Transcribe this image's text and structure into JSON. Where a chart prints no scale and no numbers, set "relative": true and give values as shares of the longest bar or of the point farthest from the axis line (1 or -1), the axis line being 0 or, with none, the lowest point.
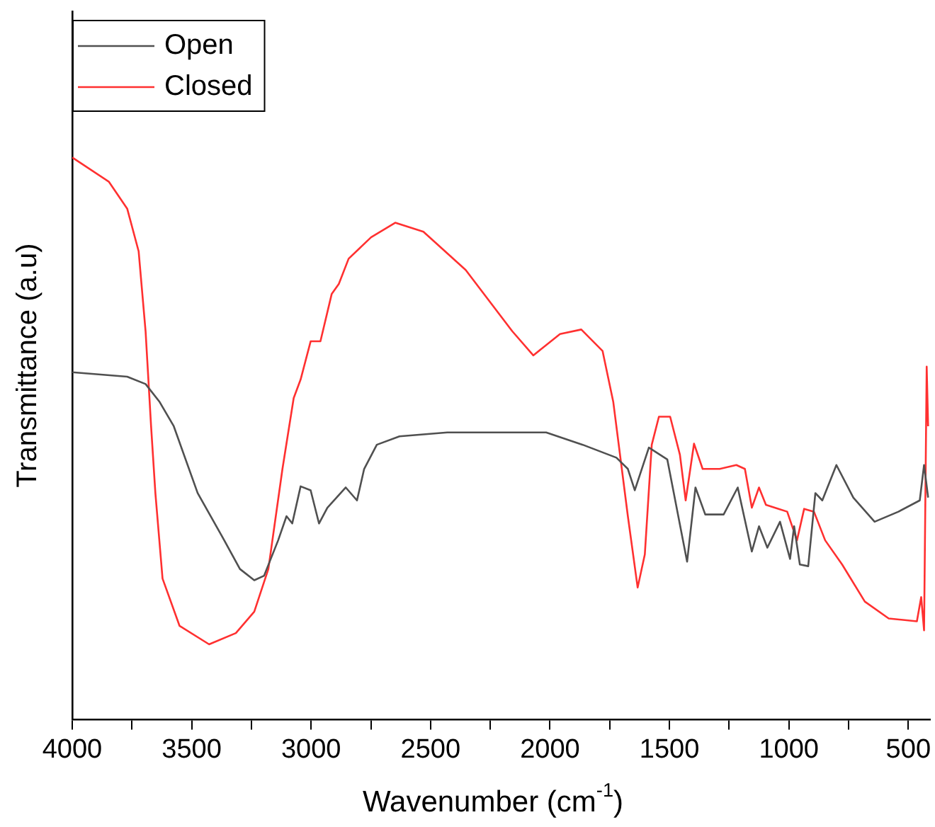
{
  "chart_data": {
    "type": "line",
    "xlabel": "Wavenumber (cm$^{-1}$)",
    "ylabel": "Transmittance (a.u)",
    "relative": true,
    "legend": "top left",
    "grid": false,
    "marker": "none",
    "line_style": "solid",
    "xlim": [
      4000,
      410
    ],
    "xticks": [
      4000,
      {
        "value": 3750,
        "label": null
      },
      3500,
      {
        "value": 3250,
        "label": null
      },
      3000,
      {
        "value": 2750,
        "label": null
      },
      2500,
      {
        "value": 2250,
        "label": null
      },
      2000,
      {
        "value": 1750,
        "label": null
      },
      1500,
      {
        "value": 1250,
        "label": null
      },
      1000,
      {
        "value": 750,
        "label": null
      },
      500
    ],
    "series": [
      {
        "name": "Open",
        "color": "#505050",
        "x": [
          4000,
          3770,
          3693,
          3634,
          3575,
          3475,
          3374,
          3298,
          3238,
          3197,
          3138,
          3103,
          3079,
          3044,
          3002,
          2967,
          2932,
          2855,
          2808,
          2778,
          2725,
          2630,
          2430,
          2353,
          2016,
          1863,
          1722,
          1674,
          1645,
          1586,
          1509,
          1426,
          1391,
          1350,
          1273,
          1214,
          1155,
          1125,
          1090,
          1037,
          995,
          978,
          954,
          919,
          889,
          860,
          801,
          730,
          641,
          541,
          452,
          434,
          417
        ],
        "values": [
          0.618,
          0.61,
          0.597,
          0.565,
          0.522,
          0.403,
          0.327,
          0.268,
          0.248,
          0.256,
          0.319,
          0.362,
          0.349,
          0.415,
          0.408,
          0.349,
          0.377,
          0.413,
          0.39,
          0.446,
          0.489,
          0.504,
          0.511,
          0.511,
          0.511,
          0.489,
          0.466,
          0.446,
          0.408,
          0.484,
          0.463,
          0.281,
          0.413,
          0.365,
          0.365,
          0.413,
          0.299,
          0.344,
          0.306,
          0.352,
          0.286,
          0.344,
          0.276,
          0.273,
          0.403,
          0.39,
          0.453,
          0.395,
          0.352,
          0.37,
          0.39,
          0.453,
          0.395
        ]
      },
      {
        "name": "Closed",
        "color": "#ff3030",
        "x": [
          4000,
          3847,
          3770,
          3722,
          3693,
          3670,
          3652,
          3622,
          3551,
          3427,
          3315,
          3238,
          3179,
          3120,
          3073,
          3044,
          3002,
          2961,
          2914,
          2884,
          2843,
          2749,
          2648,
          2530,
          2353,
          2158,
          2070,
          1958,
          1869,
          1780,
          1735,
          1674,
          1633,
          1603,
          1574,
          1544,
          1497,
          1456,
          1432,
          1397,
          1361,
          1290,
          1220,
          1184,
          1155,
          1125,
          1096,
          1043,
          1007,
          966,
          936,
          895,
          848,
          777,
          682,
          582,
          464,
          446,
          434,
          423,
          417
        ],
        "values": [
          1,
          0.957,
          0.909,
          0.833,
          0.691,
          0.522,
          0.403,
          0.251,
          0.167,
          0.134,
          0.154,
          0.192,
          0.268,
          0.446,
          0.572,
          0.605,
          0.673,
          0.673,
          0.757,
          0.775,
          0.82,
          0.858,
          0.884,
          0.868,
          0.8,
          0.691,
          0.648,
          0.686,
          0.694,
          0.656,
          0.565,
          0.362,
          0.235,
          0.294,
          0.489,
          0.539,
          0.539,
          0.471,
          0.39,
          0.491,
          0.446,
          0.446,
          0.453,
          0.446,
          0.377,
          0.413,
          0.382,
          0.375,
          0.37,
          0.319,
          0.375,
          0.37,
          0.319,
          0.276,
          0.21,
          0.18,
          0.175,
          0.218,
          0.159,
          0.628,
          0.522
        ]
      }
    ]
  }
}
